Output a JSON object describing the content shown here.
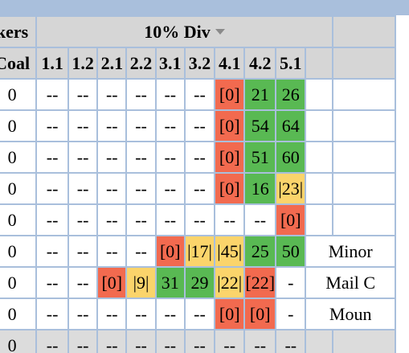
{
  "header": {
    "group_title": "10% Div",
    "left_partial_title": "kers"
  },
  "columns": [
    "Coal",
    "1.1",
    "1.2",
    "2.1",
    "2.2",
    "3.1",
    "3.2",
    "4.1",
    "4.2",
    "5.1"
  ],
  "rows": [
    {
      "coal": "0",
      "cells": [
        "--",
        "--",
        "--",
        "--",
        "--",
        "--",
        "[0]",
        "21",
        "26"
      ],
      "note": ""
    },
    {
      "coal": "0",
      "cells": [
        "--",
        "--",
        "--",
        "--",
        "--",
        "--",
        "[0]",
        "54",
        "64"
      ],
      "note": ""
    },
    {
      "coal": "0",
      "cells": [
        "--",
        "--",
        "--",
        "--",
        "--",
        "--",
        "[0]",
        "51",
        "60"
      ],
      "note": ""
    },
    {
      "coal": "0",
      "cells": [
        "--",
        "--",
        "--",
        "--",
        "--",
        "--",
        "[0]",
        "16",
        "|23|"
      ],
      "note": ""
    },
    {
      "coal": "0",
      "cells": [
        "--",
        "--",
        "--",
        "--",
        "--",
        "--",
        "--",
        "--",
        "[0]"
      ],
      "note": ""
    },
    {
      "coal": "0",
      "cells": [
        "--",
        "--",
        "--",
        "--",
        "[0]",
        "|17|",
        "|45|",
        "25",
        "50"
      ],
      "note": "Minor"
    },
    {
      "coal": "0",
      "cells": [
        "--",
        "--",
        "[0]",
        "|9|",
        "31",
        "29",
        "|22|",
        "[22]",
        "-"
      ],
      "note": "Mail C"
    },
    {
      "coal": "0",
      "cells": [
        "--",
        "--",
        "--",
        "--",
        "--",
        "--",
        "[0]",
        "[0]",
        "-"
      ],
      "note": "Moun"
    },
    {
      "coal": "0",
      "cells": [
        "--",
        "--",
        "--",
        "--",
        "--",
        "--",
        "--",
        "--",
        "--"
      ],
      "note": ""
    }
  ],
  "colors": {
    "red": "#f26a4f",
    "yellow": "#fbd46b",
    "green": "#59b953",
    "header_gray": "#d6d6d6",
    "border_blue": "#a9bfdc"
  }
}
